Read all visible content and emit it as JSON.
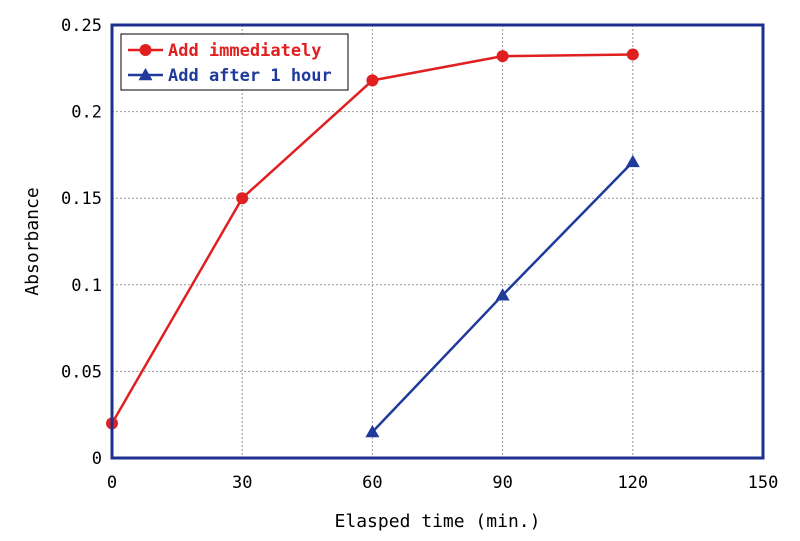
{
  "chart_data": {
    "type": "line",
    "title": "",
    "xlabel": "Elasped time (min.)",
    "ylabel": "Absorbance",
    "xlim": [
      0,
      150
    ],
    "ylim": [
      0,
      0.25
    ],
    "x_ticks": [
      0,
      30,
      60,
      90,
      120,
      150
    ],
    "y_ticks": [
      0,
      0.05,
      0.1,
      0.15,
      0.2,
      0.25
    ],
    "x_tick_labels": [
      "0",
      "30",
      "60",
      "90",
      "120",
      "150"
    ],
    "y_tick_labels": [
      "0",
      "0.05",
      "0.1",
      "0.15",
      "0.2",
      "0.25"
    ],
    "grid": true,
    "legend_position": "top-left",
    "frame_color": "#1f2f8f",
    "series": [
      {
        "name": "Add immediately",
        "color": "#e02020",
        "marker": "circle",
        "points": [
          [
            0,
            0.02
          ],
          [
            30,
            0.15
          ],
          [
            60,
            0.218
          ],
          [
            90,
            0.232
          ],
          [
            120,
            0.233
          ]
        ]
      },
      {
        "name": "Add after 1 hour",
        "color": "#1f3a9a",
        "marker": "triangle",
        "points": [
          [
            60,
            0.015
          ],
          [
            90,
            0.094
          ],
          [
            120,
            0.171
          ]
        ]
      }
    ]
  }
}
